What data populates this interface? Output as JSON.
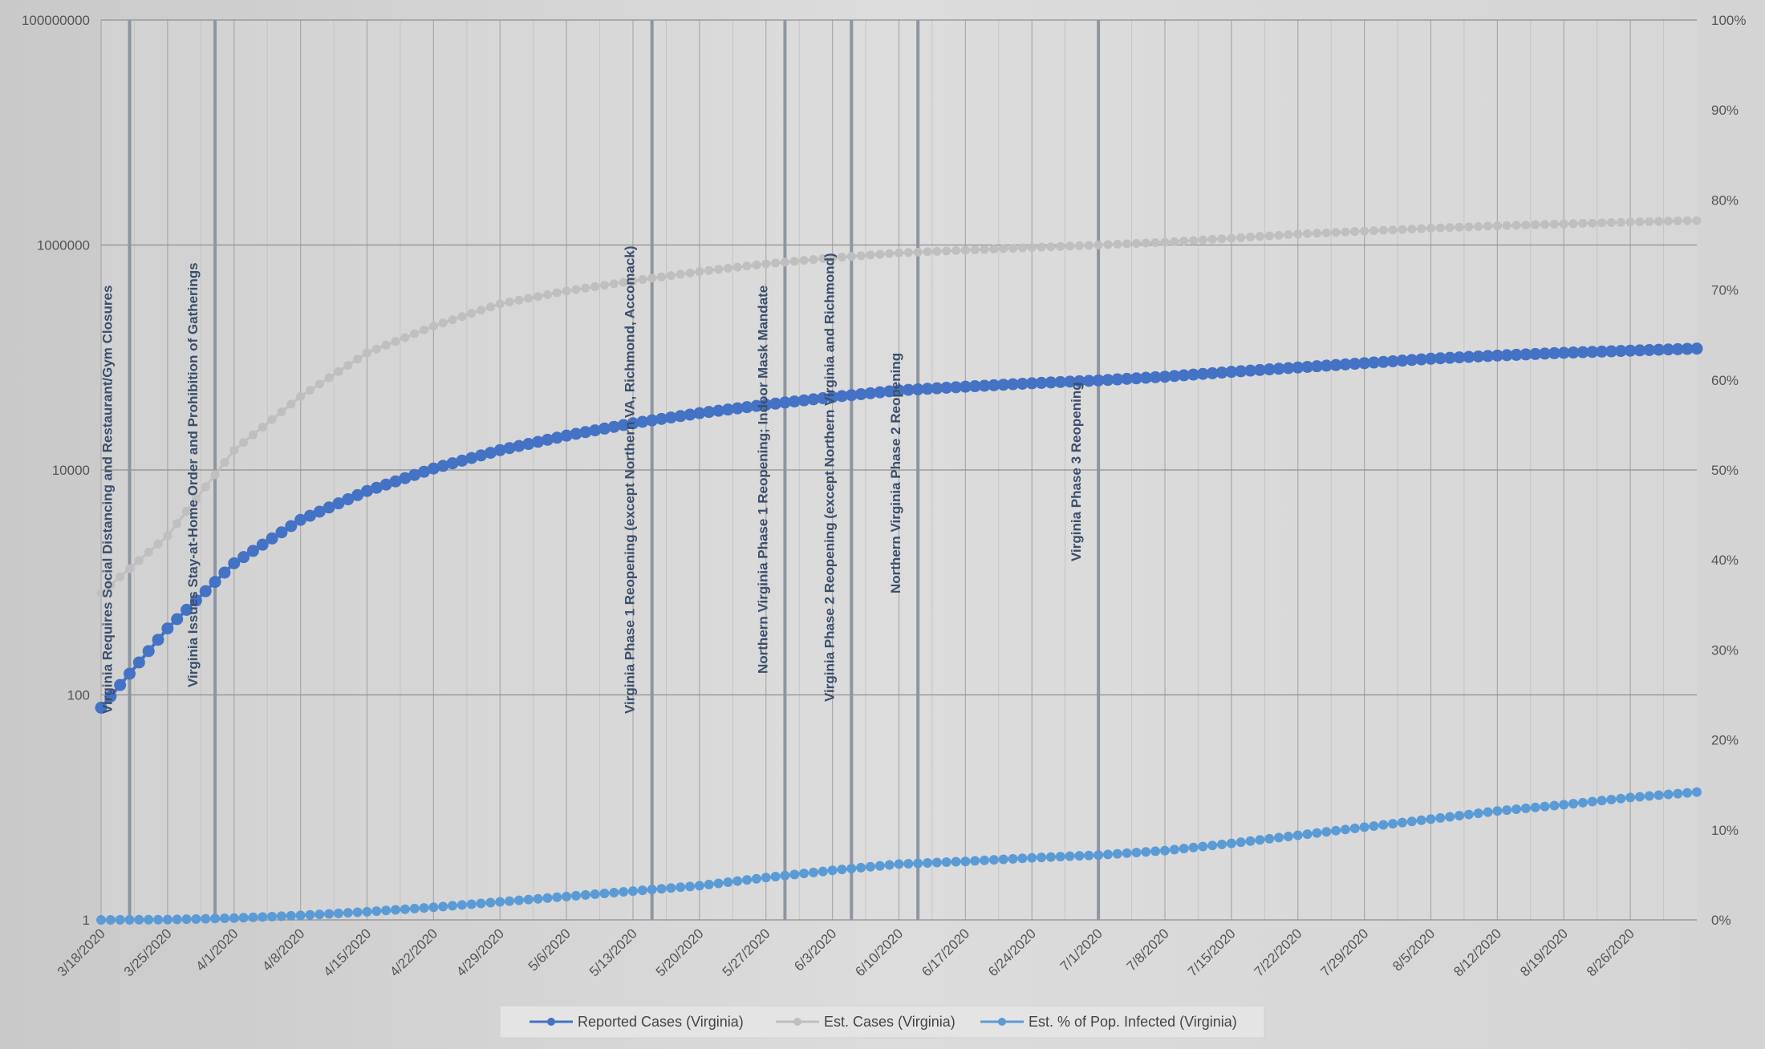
{
  "chart_data": {
    "type": "line",
    "title": "",
    "xlabel": "",
    "ylabel": "",
    "x": {
      "start": "3/18/2020",
      "end": "9/2/2020",
      "tick_labels": [
        "3/18/2020",
        "3/25/2020",
        "4/1/2020",
        "4/8/2020",
        "4/15/2020",
        "4/22/2020",
        "4/29/2020",
        "5/6/2020",
        "5/13/2020",
        "5/20/2020",
        "5/27/2020",
        "6/3/2020",
        "6/10/2020",
        "6/17/2020",
        "6/24/2020",
        "7/1/2020",
        "7/8/2020",
        "7/15/2020",
        "7/22/2020",
        "7/29/2020",
        "8/5/2020",
        "8/12/2020",
        "8/19/2020",
        "8/26/2020"
      ]
    },
    "y_left": {
      "scale": "log",
      "ylim": [
        1,
        100000000
      ],
      "tick_labels": [
        "1",
        "100",
        "10000",
        "1000000",
        "100000000"
      ]
    },
    "y_right": {
      "scale": "linear",
      "ylim": [
        0,
        1
      ],
      "tick_labels": [
        "0%",
        "10%",
        "20%",
        "30%",
        "40%",
        "50%",
        "60%",
        "70%",
        "80%",
        "90%",
        "100%"
      ]
    },
    "grid": true,
    "legend_position": "bottom",
    "colors": {
      "reported": "#4472c4",
      "estimated": "#bfbfbf",
      "percent": "#5b9bd5",
      "event_line": "#8d96a0",
      "grid": "#a9a9a9",
      "annotation_text": "#3b4e6b"
    },
    "series": [
      {
        "name": "Reported Cases (Virginia)",
        "axis": "left",
        "keypoints": [
          [
            "3/18/2020",
            77
          ],
          [
            "3/25/2020",
            390
          ],
          [
            "4/1/2020",
            1480
          ],
          [
            "4/8/2020",
            3600
          ],
          [
            "4/15/2020",
            6500
          ],
          [
            "4/22/2020",
            10300
          ],
          [
            "4/29/2020",
            15000
          ],
          [
            "5/6/2020",
            20200
          ],
          [
            "5/13/2020",
            26000
          ],
          [
            "5/20/2020",
            32000
          ],
          [
            "5/27/2020",
            38000
          ],
          [
            "6/3/2020",
            44500
          ],
          [
            "6/10/2020",
            51000
          ],
          [
            "6/17/2020",
            55000
          ],
          [
            "6/24/2020",
            59000
          ],
          [
            "7/1/2020",
            62500
          ],
          [
            "7/8/2020",
            67500
          ],
          [
            "7/15/2020",
            74500
          ],
          [
            "7/22/2020",
            81500
          ],
          [
            "7/29/2020",
            89000
          ],
          [
            "8/5/2020",
            97500
          ],
          [
            "8/12/2020",
            104000
          ],
          [
            "8/19/2020",
            110000
          ],
          [
            "8/26/2020",
            115000
          ],
          [
            "9/2/2020",
            120000
          ]
        ]
      },
      {
        "name": "Est. Cases (Virginia)",
        "axis": "left",
        "keypoints": [
          [
            "3/18/2020",
            800
          ],
          [
            "3/25/2020",
            2600
          ],
          [
            "4/1/2020",
            15000
          ],
          [
            "4/8/2020",
            45000
          ],
          [
            "4/15/2020",
            110000
          ],
          [
            "4/22/2020",
            190000
          ],
          [
            "4/29/2020",
            300000
          ],
          [
            "5/6/2020",
            390000
          ],
          [
            "5/13/2020",
            480000
          ],
          [
            "5/20/2020",
            580000
          ],
          [
            "5/27/2020",
            680000
          ],
          [
            "6/3/2020",
            770000
          ],
          [
            "6/10/2020",
            850000
          ],
          [
            "6/17/2020",
            900000
          ],
          [
            "6/24/2020",
            950000
          ],
          [
            "7/1/2020",
            1000000
          ],
          [
            "7/8/2020",
            1060000
          ],
          [
            "7/15/2020",
            1150000
          ],
          [
            "7/22/2020",
            1250000
          ],
          [
            "7/29/2020",
            1330000
          ],
          [
            "8/5/2020",
            1410000
          ],
          [
            "8/12/2020",
            1480000
          ],
          [
            "8/19/2020",
            1540000
          ],
          [
            "8/26/2020",
            1600000
          ],
          [
            "9/2/2020",
            1650000
          ]
        ]
      },
      {
        "name": "Est. % of Pop. Infected (Virginia)",
        "axis": "right",
        "keypoints": [
          [
            "3/18/2020",
            0.0
          ],
          [
            "3/25/2020",
            0.0003
          ],
          [
            "4/1/2020",
            0.002
          ],
          [
            "4/8/2020",
            0.005
          ],
          [
            "4/15/2020",
            0.009
          ],
          [
            "4/22/2020",
            0.014
          ],
          [
            "4/29/2020",
            0.02
          ],
          [
            "5/6/2020",
            0.026
          ],
          [
            "5/13/2020",
            0.032
          ],
          [
            "5/20/2020",
            0.038
          ],
          [
            "5/27/2020",
            0.047
          ],
          [
            "6/3/2020",
            0.055
          ],
          [
            "6/10/2020",
            0.062
          ],
          [
            "6/17/2020",
            0.065
          ],
          [
            "6/24/2020",
            0.069
          ],
          [
            "7/1/2020",
            0.072
          ],
          [
            "7/8/2020",
            0.077
          ],
          [
            "7/15/2020",
            0.085
          ],
          [
            "7/22/2020",
            0.094
          ],
          [
            "7/29/2020",
            0.103
          ],
          [
            "8/5/2020",
            0.112
          ],
          [
            "8/12/2020",
            0.121
          ],
          [
            "8/19/2020",
            0.128
          ],
          [
            "8/26/2020",
            0.136
          ],
          [
            "9/2/2020",
            0.142
          ]
        ]
      }
    ],
    "annotations": [
      {
        "date": "3/21/2020",
        "label": "Virginia Requires Social Distancing and Restaurant/Gym Closures"
      },
      {
        "date": "3/30/2020",
        "label": "Virginia Issues Stay-at-Home Order and Prohibition of Gatherings"
      },
      {
        "date": "5/15/2020",
        "label": "Virginia Phase 1 Reopening (except Northern VA, Richmond, Accomack)"
      },
      {
        "date": "5/29/2020",
        "label": "Northern Virginia Phase 1 Reopening; Indoor Mask Mandate"
      },
      {
        "date": "6/5/2020",
        "label": "Virginia Phase 2 Reopening (except Northern Virginia and Richmond)"
      },
      {
        "date": "6/12/2020",
        "label": "Northern Virginia Phase 2 Reopening"
      },
      {
        "date": "7/1/2020",
        "label": "Virginia Phase 3 Reopening"
      }
    ]
  }
}
